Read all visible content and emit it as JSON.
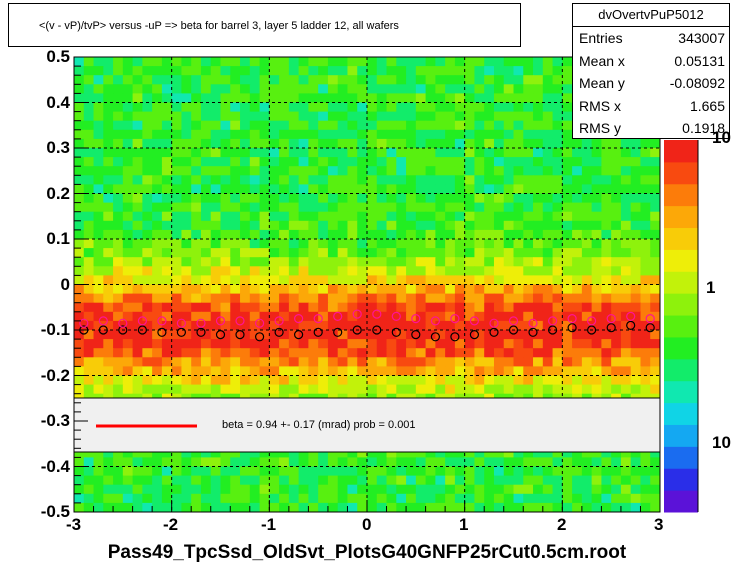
{
  "title": "<(v - vP)/tvP> versus  -uP => beta for barrel 3, layer 5 ladder 12, all wafers",
  "stats": {
    "name": "dvOvertvPuP5012",
    "rows": [
      {
        "key": "Entries",
        "value": "343007"
      },
      {
        "key": "Mean x",
        "value": "0.05131"
      },
      {
        "key": "Mean y",
        "value": "-0.08092"
      },
      {
        "key": "RMS x",
        "value": "1.665"
      },
      {
        "key": "RMS y",
        "value": "0.1918"
      }
    ]
  },
  "legend": {
    "text": "beta =    0.94 +-  0.17 (mrad) prob = 0.001",
    "line_color": "#ff0000"
  },
  "colorbar_labels": [
    "10",
    "1",
    "10"
  ],
  "chart_data": {
    "type": "heatmap",
    "title": "<(v - vP)/tvP> versus  -uP => beta for barrel 3, layer 5 ladder 12, all wafers",
    "xlabel": "Pass49_TpcSsd_OldSvt_PlotsG40GNFP25rCut0.5cm.root",
    "ylabel": "",
    "xlim": [
      -3,
      3
    ],
    "ylim": [
      -0.5,
      0.5
    ],
    "x_ticks": [
      "-3",
      "-2",
      "-1",
      "0",
      "1",
      "2",
      "3"
    ],
    "y_ticks": [
      "0.5",
      "0.4",
      "0.3",
      "0.2",
      "0.1",
      "0",
      "-0.1",
      "-0.2",
      "-0.3",
      "-0.4",
      "-0.5"
    ],
    "grid": true,
    "log_z": true,
    "peak_y": -0.1,
    "series": [
      {
        "style": "black open circles",
        "x": [
          -2.9,
          -2.7,
          -2.5,
          -2.3,
          -2.1,
          -1.9,
          -1.7,
          -1.5,
          -1.3,
          -1.1,
          -0.9,
          -0.7,
          -0.5,
          -0.3,
          -0.1,
          0.1,
          0.3,
          0.5,
          0.7,
          0.9,
          1.1,
          1.3,
          1.5,
          1.7,
          1.9,
          2.1,
          2.3,
          2.5,
          2.7,
          2.9
        ],
        "y": [
          -0.1,
          -0.1,
          -0.1,
          -0.1,
          -0.105,
          -0.105,
          -0.105,
          -0.11,
          -0.11,
          -0.115,
          -0.105,
          -0.11,
          -0.105,
          -0.105,
          -0.1,
          -0.1,
          -0.105,
          -0.11,
          -0.115,
          -0.115,
          -0.11,
          -0.105,
          -0.1,
          -0.105,
          -0.1,
          -0.095,
          -0.1,
          -0.095,
          -0.09,
          -0.095
        ]
      },
      {
        "style": "magenta open circles",
        "x": [
          -2.9,
          -2.7,
          -2.5,
          -2.3,
          -2.1,
          -1.9,
          -1.7,
          -1.5,
          -1.3,
          -1.1,
          -0.9,
          -0.7,
          -0.5,
          -0.3,
          -0.1,
          0.1,
          0.3,
          0.5,
          0.7,
          0.9,
          1.1,
          1.3,
          1.5,
          1.7,
          1.9,
          2.1,
          2.3,
          2.5,
          2.7,
          2.9
        ],
        "y": [
          -0.085,
          -0.08,
          -0.085,
          -0.08,
          -0.08,
          -0.085,
          -0.085,
          -0.08,
          -0.08,
          -0.085,
          -0.08,
          -0.075,
          -0.075,
          -0.07,
          -0.065,
          -0.065,
          -0.07,
          -0.075,
          -0.08,
          -0.075,
          -0.08,
          -0.085,
          -0.08,
          -0.085,
          -0.08,
          -0.075,
          -0.08,
          -0.075,
          -0.07,
          -0.075
        ]
      }
    ]
  }
}
